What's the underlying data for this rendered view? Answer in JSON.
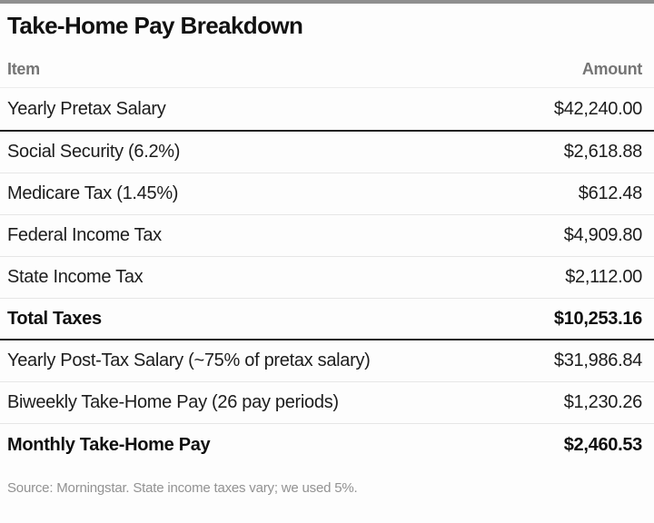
{
  "title": "Take-Home Pay Breakdown",
  "columns": {
    "item": "Item",
    "amount": "Amount"
  },
  "rows": [
    {
      "item": "Yearly Pretax Salary",
      "amount": "$42,240.00"
    },
    {
      "item": "Social Security (6.2%)",
      "amount": "$2,618.88"
    },
    {
      "item": "Medicare Tax (1.45%)",
      "amount": "$612.48"
    },
    {
      "item": "Federal Income Tax",
      "amount": "$4,909.80"
    },
    {
      "item": "State Income Tax",
      "amount": "$2,112.00"
    },
    {
      "item": "Total Taxes",
      "amount": "$10,253.16"
    },
    {
      "item": "Yearly Post-Tax Salary (~75% of pretax salary)",
      "amount": "$31,986.84"
    },
    {
      "item": "Biweekly Take-Home Pay (26 pay periods)",
      "amount": "$1,230.26"
    },
    {
      "item": "Monthly Take-Home Pay",
      "amount": "$2,460.53"
    }
  ],
  "source_note": "Source: Morningstar. State income taxes vary; we used 5%.",
  "colors": {
    "top_bar": "#8f8f8f",
    "header_text": "#757575",
    "body_text": "#1c1c1c",
    "light_divider": "#e6e6e6",
    "dark_divider": "#222222",
    "source_text": "#929292"
  },
  "chart_data": {
    "type": "table",
    "title": "Take-Home Pay Breakdown",
    "columns": [
      "Item",
      "Amount"
    ],
    "rows": [
      [
        "Yearly Pretax Salary",
        "$42,240.00"
      ],
      [
        "Social Security (6.2%)",
        "$2,618.88"
      ],
      [
        "Medicare Tax (1.45%)",
        "$612.48"
      ],
      [
        "Federal Income Tax",
        "$4,909.80"
      ],
      [
        "State Income Tax",
        "$2,112.00"
      ],
      [
        "Total Taxes",
        "$10,253.16"
      ],
      [
        "Yearly Post-Tax Salary (~75% of pretax salary)",
        "$31,986.84"
      ],
      [
        "Biweekly Take-Home Pay (26 pay periods)",
        "$1,230.26"
      ],
      [
        "Monthly Take-Home Pay",
        "$2,460.53"
      ]
    ],
    "values": {
      "yearly_pretax_salary": 42240.0,
      "social_security": 2618.88,
      "medicare_tax": 612.48,
      "federal_income_tax": 4909.8,
      "state_income_tax": 2112.0,
      "total_taxes": 10253.16,
      "yearly_post_tax_salary": 31986.84,
      "biweekly_take_home_pay": 1230.26,
      "monthly_take_home_pay": 2460.53
    },
    "bold_rows": [
      "Total Taxes",
      "Monthly Take-Home Pay"
    ],
    "annotations": [
      "Source: Morningstar. State income taxes vary; we used 5%."
    ]
  }
}
